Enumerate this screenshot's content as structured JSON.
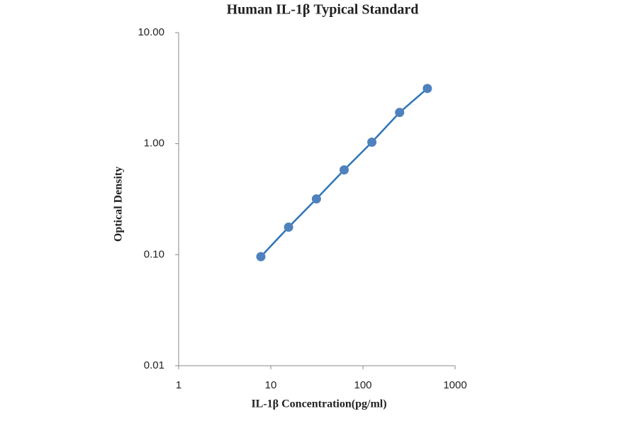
{
  "chart_data": {
    "type": "scatter",
    "title": "Human IL-1β Typical Standard",
    "x_label": "IL-1β Concentration(pg/ml)",
    "y_label": "Optical Density",
    "xscale": "log",
    "yscale": "log",
    "xlim": [
      1,
      1000
    ],
    "xticks": [
      1,
      10,
      100,
      1000
    ],
    "ylim": [
      0.01,
      10
    ],
    "yticks": [
      {
        "value": 0.01,
        "label": "0.01"
      },
      {
        "value": 0.1,
        "label": "0.10"
      },
      {
        "value": 1,
        "label": "1.00"
      },
      {
        "value": 10,
        "label": "10.00"
      }
    ],
    "series": [
      {
        "x": [
          7.8,
          15.6,
          31.25,
          62.5,
          125,
          250,
          500
        ],
        "values": [
          0.096,
          0.177,
          0.318,
          0.58,
          1.03,
          1.91,
          3.14
        ],
        "color": "#4f81bd",
        "line_color": "#2e75b6"
      }
    ],
    "grid": false
  }
}
